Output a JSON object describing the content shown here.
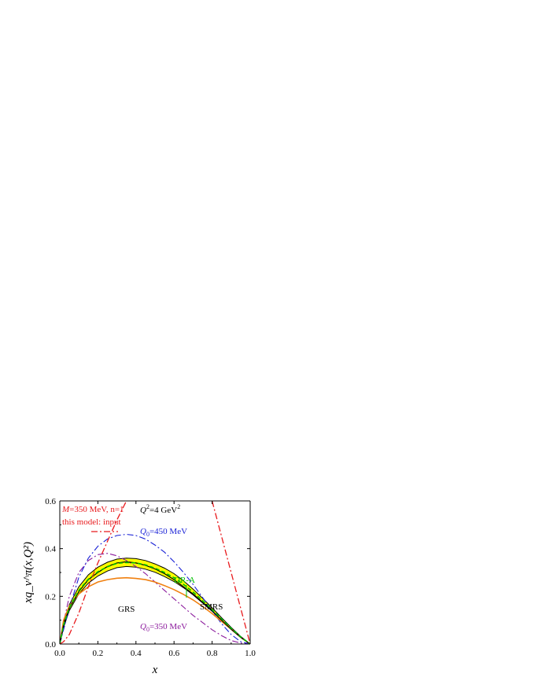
{
  "chart_data": {
    "type": "line",
    "xlabel": "x",
    "ylabel": "xq_v^π(x,Q²)",
    "xlim": [
      0.0,
      1.0
    ],
    "ylim": [
      0.0,
      0.6
    ],
    "x_ticks": [
      "0.0",
      "0.2",
      "0.4",
      "0.6",
      "0.8",
      "1.0"
    ],
    "y_ticks": [
      "0.0",
      "0.2",
      "0.4",
      "0.6"
    ],
    "grid": false,
    "colors": {
      "input": "#e8191c",
      "q0_450": "#1a22d6",
      "q0_350": "#8b1a9c",
      "grs": "#f08010",
      "smrs": "#000000",
      "dra": "#00c000",
      "band_fill": "#ffff00"
    },
    "x": [
      0.0,
      0.02,
      0.05,
      0.1,
      0.15,
      0.2,
      0.25,
      0.3,
      0.35,
      0.4,
      0.45,
      0.5,
      0.55,
      0.6,
      0.65,
      0.7,
      0.75,
      0.8,
      0.85,
      0.9,
      0.95,
      1.0
    ],
    "series": [
      {
        "key": "input",
        "style": "dashdot",
        "values": [
          0.0,
          0.01,
          0.04,
          0.13,
          0.24,
          0.34,
          0.43,
          0.52,
          0.6,
          null,
          null,
          null,
          null,
          null,
          null,
          null,
          null,
          0.6,
          0.45,
          0.3,
          0.15,
          0.0
        ]
      },
      {
        "key": "q0_450",
        "style": "dashdot",
        "values": [
          0.0,
          0.06,
          0.15,
          0.28,
          0.36,
          0.41,
          0.44,
          0.455,
          0.46,
          0.455,
          0.44,
          0.415,
          0.385,
          0.345,
          0.3,
          0.25,
          0.195,
          0.14,
          0.085,
          0.04,
          0.01,
          0.0
        ]
      },
      {
        "key": "q0_350",
        "style": "dashdot",
        "values": [
          0.0,
          0.09,
          0.2,
          0.3,
          0.35,
          0.375,
          0.38,
          0.37,
          0.35,
          0.325,
          0.295,
          0.26,
          0.225,
          0.19,
          0.155,
          0.12,
          0.09,
          0.06,
          0.035,
          0.015,
          0.004,
          0.0
        ]
      },
      {
        "key": "grs",
        "style": "solid",
        "values": [
          0.0,
          0.1,
          0.16,
          0.21,
          0.24,
          0.26,
          0.27,
          0.276,
          0.278,
          0.275,
          0.27,
          0.26,
          0.245,
          0.228,
          0.208,
          0.185,
          0.158,
          0.128,
          0.095,
          0.062,
          0.028,
          0.0
        ]
      },
      {
        "key": "smrs",
        "style": "solid",
        "values": [
          0.0,
          0.08,
          0.15,
          0.22,
          0.27,
          0.3,
          0.325,
          0.34,
          0.345,
          0.34,
          0.33,
          0.315,
          0.295,
          0.27,
          0.24,
          0.21,
          0.175,
          0.14,
          0.1,
          0.062,
          0.028,
          0.0
        ]
      },
      {
        "key": "band_upper",
        "style": "band",
        "values": [
          0.0,
          0.09,
          0.165,
          0.24,
          0.29,
          0.322,
          0.343,
          0.356,
          0.36,
          0.358,
          0.35,
          0.336,
          0.318,
          0.295,
          0.265,
          0.23,
          0.192,
          0.152,
          0.11,
          0.07,
          0.032,
          0.0
        ]
      },
      {
        "key": "band_lower",
        "style": "band",
        "values": [
          0.0,
          0.07,
          0.14,
          0.21,
          0.255,
          0.285,
          0.306,
          0.32,
          0.325,
          0.322,
          0.314,
          0.301,
          0.283,
          0.262,
          0.236,
          0.206,
          0.172,
          0.137,
          0.1,
          0.063,
          0.028,
          0.0
        ]
      },
      {
        "key": "dra",
        "style": "dash",
        "values": [
          0.0,
          0.08,
          0.152,
          0.225,
          0.272,
          0.303,
          0.324,
          0.338,
          0.342,
          0.34,
          0.332,
          0.318,
          0.3,
          0.278,
          0.25,
          0.218,
          0.182,
          0.144,
          0.105,
          0.066,
          0.03,
          0.0
        ]
      }
    ],
    "annotations": {
      "input_line1_italic": "M",
      "input_line1_rest": "=350 MeV, n=1",
      "input_line2": "this model: input",
      "q2_pre": "Q",
      "q2_sup": "2",
      "q2_rest": "=4 GeV",
      "q2_unit_sup": "2",
      "q0_450_q": "Q",
      "q0_450_sub": "0",
      "q0_450_rest": "=450 MeV",
      "q0_350_q": "Q",
      "q0_350_sub": "0",
      "q0_350_rest": "=350 MeV",
      "dra": "DR-A",
      "grs": "GRS",
      "smrs": "SMRS"
    }
  }
}
